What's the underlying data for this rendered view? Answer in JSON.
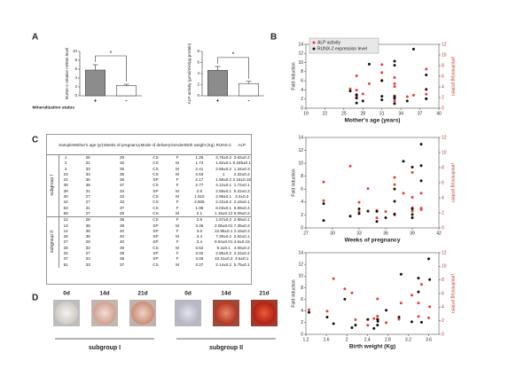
{
  "panel_labels": [
    "A",
    "B",
    "C",
    "D"
  ],
  "chart_data": [
    {
      "type": "bar",
      "ylabel": "RUNX-2 relative mRNA level",
      "xlabel": "Mineralization status",
      "categories": [
        "+",
        "-"
      ],
      "values": [
        5.8,
        2.3
      ],
      "errors": [
        1.2,
        0.3
      ],
      "colors": [
        "#8c8c8c",
        "#ffffff"
      ],
      "ylim": [
        0,
        10
      ],
      "yticks": [
        0,
        2,
        4,
        6,
        8,
        10
      ],
      "annotation": "*"
    },
    {
      "type": "bar",
      "ylabel": "ALP activity (µmol/min/µg protein)",
      "categories": [
        "+",
        "-"
      ],
      "values": [
        4.6,
        2.2
      ],
      "errors": [
        0.7,
        0.4
      ],
      "colors": [
        "#8c8c8c",
        "#ffffff"
      ],
      "ylim": [
        0,
        8
      ],
      "yticks": [
        0,
        2,
        4,
        6,
        8
      ],
      "annotation": "*"
    },
    {
      "type": "scatter",
      "xlabel": "Mother's age (years)",
      "ylabel": "Fold induction",
      "y2label": "µmol/min/µg protein",
      "legend": "upper left",
      "x": [
        26,
        31,
        33,
        33,
        35,
        38,
        31,
        27,
        27,
        31,
        27,
        28,
        38,
        36,
        38,
        29,
        33,
        27,
        33,
        33
      ],
      "xlim": [
        19,
        40
      ],
      "xticks": [
        19,
        22,
        25,
        28,
        31,
        34,
        37,
        40
      ],
      "ylim": [
        0,
        14
      ],
      "yticks": [
        0,
        2,
        4,
        6,
        8,
        10,
        12,
        14
      ],
      "y2lim": [
        0,
        12
      ],
      "y2ticks": [
        0,
        2,
        4,
        6,
        8,
        10,
        12
      ],
      "series": [
        {
          "name": "ALP activity",
          "color": "#e8403a",
          "axis": "y2",
          "values": [
            3.62,
            8.185,
            1.34,
            2.32,
            2.16,
            1.72,
            5.22,
            3.4,
            2.16,
            6.69,
            6.09,
            2.68,
            7.35,
            2.43,
            2.62,
            4.6,
            4.06,
            2.22,
            4.6,
            5.75
          ]
        },
        {
          "name": "RUNX-2 expression level",
          "color": "#111111",
          "values": [
            3.76,
            1.82,
            2.55,
            1,
            1.58,
            4.12,
            2.59,
            2.95,
            2.22,
            6.03,
            1.15,
            1.57,
            2.08,
            12.95,
            7.29,
            9.64,
            9.4,
            2.95,
            10.31,
            2.14
          ]
        }
      ]
    },
    {
      "type": "scatter",
      "xlabel": "Weeks of pregnancy",
      "ylabel": "Fold induction",
      "y2label": "µmol/min/µg protein",
      "x": [
        29,
        32,
        35,
        35,
        36,
        37,
        34,
        33,
        33,
        37,
        29,
        39,
        39,
        40,
        40,
        40,
        39,
        39,
        38,
        37
      ],
      "xlim": [
        27,
        42
      ],
      "xticks": [
        27,
        30,
        33,
        36,
        39,
        42
      ],
      "ylim": [
        0,
        14
      ],
      "yticks": [
        0,
        2,
        4,
        6,
        8,
        10,
        12,
        14
      ],
      "y2lim": [
        0,
        12
      ],
      "y2ticks": [
        0,
        2,
        4,
        6,
        8,
        10,
        12
      ],
      "series": [
        {
          "color": "#e8403a",
          "axis": "y2",
          "values": [
            3.62,
            8.185,
            1.34,
            2.32,
            2.16,
            1.72,
            5.22,
            3.4,
            2.16,
            6.69,
            6.09,
            2.68,
            7.35,
            2.43,
            2.62,
            4.6,
            4.06,
            2.22,
            4.6,
            5.75
          ]
        },
        {
          "color": "#111111",
          "values": [
            3.76,
            1.82,
            2.55,
            1,
            1.58,
            4.12,
            2.59,
            2.95,
            2.22,
            6.03,
            1.15,
            1.57,
            2.08,
            12.95,
            7.29,
            9.64,
            9.4,
            2.95,
            10.31,
            2.14
          ]
        }
      ]
    },
    {
      "type": "scatter",
      "xlabel": "Birth weight (Kg)",
      "ylabel": "Fold induction",
      "y2label": "µmol/min/µg protein",
      "x": [
        1.26,
        1.74,
        2.41,
        2.53,
        2.17,
        2.77,
        2.6,
        1.615,
        2.606,
        1.96,
        2.1,
        2.6,
        3.46,
        3.6,
        3.4,
        3.4,
        3.62,
        3.02,
        3.06,
        3.27
      ],
      "xlim": [
        1.2,
        3.8
      ],
      "xticks": [
        1.2,
        1.6,
        2,
        2.4,
        2.8,
        3.2,
        3.6
      ],
      "ylim": [
        0,
        14
      ],
      "yticks": [
        0,
        2,
        4,
        6,
        8,
        10,
        12,
        14
      ],
      "y2lim": [
        0,
        12
      ],
      "y2ticks": [
        0,
        2,
        4,
        6,
        8,
        10,
        12
      ],
      "series": [
        {
          "color": "#e8403a",
          "axis": "y2",
          "values": [
            3.62,
            8.185,
            1.34,
            2.32,
            2.16,
            1.72,
            5.22,
            3.4,
            2.16,
            6.69,
            6.09,
            2.68,
            7.35,
            2.43,
            2.62,
            4.6,
            4.06,
            2.22,
            4.6,
            5.75
          ]
        },
        {
          "color": "#111111",
          "values": [
            3.76,
            1.82,
            2.55,
            1,
            1.58,
            4.12,
            2.59,
            2.95,
            2.22,
            6.03,
            1.15,
            1.57,
            2.08,
            12.95,
            7.29,
            9.64,
            9.4,
            2.95,
            10.31,
            2.14
          ]
        }
      ]
    }
  ],
  "table": {
    "columns": [
      "Sample",
      "Mother's age (yr)",
      "Weeks of pregnancy",
      "Mode of delivery",
      "Gender",
      "Birth weight (Kg)",
      "RUNX-2",
      "ALP"
    ],
    "groups": [
      {
        "name": "subgroup I",
        "rows": [
          [
            "1",
            "26",
            "29",
            "CS",
            "F",
            "1.26",
            "3.76±0.2",
            "3.62±0.2"
          ],
          [
            "2",
            "31",
            "32",
            "CS",
            "M",
            "1.74",
            "1.82±0.1",
            "8.185±0.1"
          ],
          [
            "4",
            "33",
            "35",
            "CS",
            "M",
            "2.41",
            "2.55±0.2",
            "1.34±0.3"
          ],
          [
            "23",
            "33",
            "35",
            "CS",
            "M",
            "2.53",
            "1",
            "2.32±0.2"
          ],
          [
            "22",
            "35",
            "36",
            "SP",
            "F",
            "2.17",
            "1.58±0.2",
            "2.16±0.15"
          ],
          [
            "35",
            "38",
            "37",
            "CS",
            "F",
            "2.77",
            "4.12±0.1",
            "1.72±0.1"
          ],
          [
            "39",
            "31",
            "34",
            "SP",
            "M",
            "2.6",
            "2.59±0.1",
            "5.22±0.3"
          ],
          [
            "40",
            "27",
            "33",
            "CS",
            "M",
            "1.615",
            "2.95±0.1",
            "3.4±0.3"
          ],
          [
            "44",
            "27",
            "33",
            "CS",
            "F",
            "2.606",
            "2.22±0.2",
            "2.16±0.1"
          ],
          [
            "63",
            "31",
            "37",
            "CS",
            "F",
            "1.96",
            "6.03±0.1",
            "6.69±0.4"
          ],
          [
            "69",
            "27",
            "29",
            "CS",
            "M",
            "2.1",
            "1.15±0.12",
            "6.09±0.2"
          ]
        ]
      },
      {
        "name": "subgroup II",
        "rows": [
          [
            "12",
            "28",
            "39",
            "CS",
            "F",
            "2.6",
            "1.57±0.2",
            "2.68±0.1"
          ],
          [
            "13",
            "38",
            "39",
            "SP",
            "M",
            "3.46",
            "2.08±0.01",
            "7.35±0.2"
          ],
          [
            "14",
            "36",
            "40",
            "SP",
            "F",
            "3.6",
            "12.95±0.1",
            "2.43±0.2"
          ],
          [
            "26",
            "38",
            "40",
            "SP",
            "M",
            "3.4",
            "7.29±0.2",
            "2.62±0.1"
          ],
          [
            "27",
            "29",
            "40",
            "SP",
            "F",
            "3.4",
            "9.64±0.01",
            "4.6±0.15"
          ],
          [
            "28",
            "33",
            "39",
            "CS",
            "M",
            "3.62",
            "9.4±0.1",
            "4.06±0.2"
          ],
          [
            "33",
            "27",
            "39",
            "SP",
            "F",
            "3.02",
            "2.95±0.2",
            "2.22±0.2"
          ],
          [
            "37",
            "33",
            "38",
            "SP",
            "F",
            "3.06",
            "10.31±0.2",
            "4.6±0.1"
          ],
          [
            "61",
            "33",
            "37",
            "CS",
            "M",
            "3.27",
            "2.14±0.2",
            "5.75±0.1"
          ]
        ]
      }
    ]
  },
  "micrographs": {
    "groups": [
      {
        "name": "subgroup I",
        "days": [
          "0d",
          "14d",
          "21d"
        ]
      },
      {
        "name": "subgroup II",
        "days": [
          "0d",
          "14d",
          "21d"
        ]
      }
    ]
  }
}
